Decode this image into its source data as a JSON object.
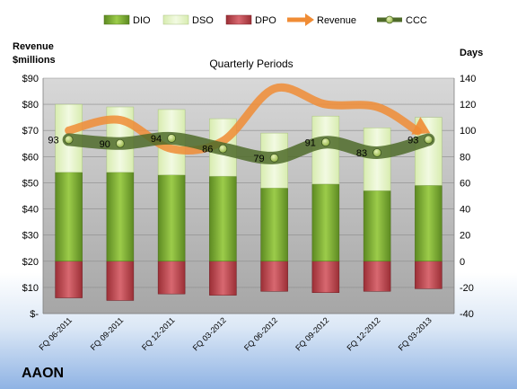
{
  "chart_data": {
    "type": "bar",
    "title": "Quarterly Periods",
    "brand": "AAON",
    "y_left": {
      "label_line1": "Revenue",
      "label_line2": "$millions",
      "min": 0,
      "max": 90,
      "step": 10,
      "ticks": [
        "$-",
        "$10",
        "$20",
        "$30",
        "$40",
        "$50",
        "$60",
        "$70",
        "$80",
        "$90"
      ]
    },
    "y_right": {
      "label": "Days",
      "min": -40,
      "max": 140,
      "step": 20,
      "ticks": [
        "-40",
        "-20",
        "0",
        "20",
        "40",
        "60",
        "80",
        "100",
        "120",
        "140"
      ]
    },
    "categories": [
      "FQ 06-2011",
      "FQ 09-2011",
      "FQ 12-2011",
      "FQ 03-2012",
      "FQ 06-2012",
      "FQ 09-2012",
      "FQ 12-2012",
      "FQ 03-2013"
    ],
    "legend": [
      "DIO",
      "DSO",
      "DPO",
      "Revenue",
      "CCC"
    ],
    "legend_position": "top",
    "grid": true,
    "series": [
      {
        "name": "DIO",
        "axis": "right",
        "values": [
          68,
          68,
          66,
          65,
          56,
          59,
          54,
          58
        ]
      },
      {
        "name": "DSO",
        "axis": "right",
        "values": [
          52,
          50,
          50,
          44,
          42,
          52,
          48,
          52
        ]
      },
      {
        "name": "DPO",
        "axis": "right",
        "values": [
          -28,
          -30,
          -25,
          -26,
          -23,
          -24,
          -23,
          -21
        ]
      },
      {
        "name": "Revenue",
        "axis": "left",
        "values": [
          70,
          74,
          63,
          66,
          86,
          80,
          79,
          69
        ]
      },
      {
        "name": "CCC",
        "axis": "right",
        "values": [
          93,
          90,
          94,
          86,
          79,
          91,
          83,
          93
        ]
      }
    ],
    "ccc_labels": [
      "93",
      "90",
      "94",
      "86",
      "79",
      "91",
      "83",
      "93"
    ],
    "colors": {
      "DIO": "#5d8a22",
      "DIO_light": "#9ccc4a",
      "DSO": "#d8ecb0",
      "DSO_light": "#f2fae2",
      "DPO": "#9b2f36",
      "DPO_light": "#d86870",
      "Revenue": "#f08c35",
      "CCC": "#4f6b2a",
      "CCC_marker": "#8fb040",
      "plot_bg": "#a6a6a6",
      "plot_bg_light": "#d8d8d8"
    }
  }
}
